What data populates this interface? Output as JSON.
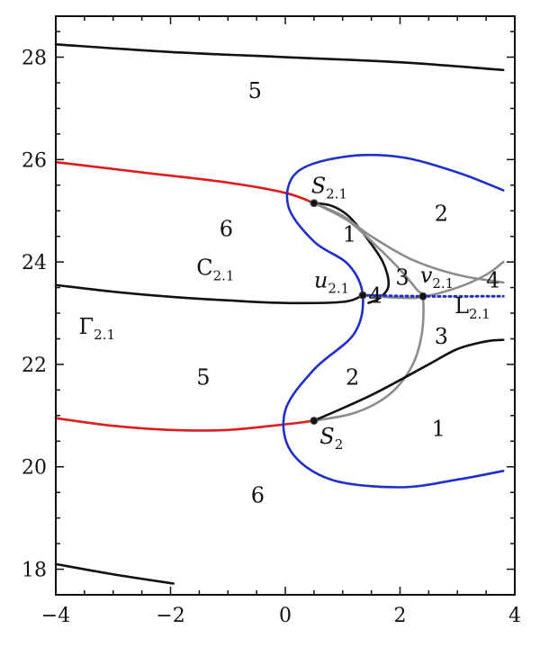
{
  "chart_data": {
    "type": "line",
    "xlim": [
      -4,
      4
    ],
    "ylim": [
      17.5,
      28.8
    ],
    "x_ticks": [
      "−4",
      "−2",
      "0",
      "2",
      "4"
    ],
    "y_ticks": [
      "18",
      "20",
      "22",
      "24",
      "26",
      "28"
    ],
    "x_tick_values": [
      -4,
      -2,
      0,
      2,
      4
    ],
    "y_tick_values": [
      18,
      20,
      22,
      24,
      26,
      28
    ],
    "colors": {
      "black": "#111111",
      "red": "#e01b1b",
      "blue": "#1f2fc8",
      "gray": "#8c8c8c",
      "dotted": "#1f2fc8"
    },
    "series": [
      {
        "color": "black",
        "style": "solid",
        "points": [
          [
            -4,
            28.25
          ],
          [
            -2,
            28.1
          ],
          [
            0,
            28.0
          ],
          [
            2,
            27.9
          ],
          [
            3.8,
            27.75
          ]
        ]
      },
      {
        "color": "black",
        "style": "solid",
        "points": [
          [
            -4,
            18.1
          ],
          [
            -3,
            17.9
          ],
          [
            -1.95,
            17.72
          ]
        ]
      },
      {
        "color": "red",
        "style": "solid",
        "points": [
          [
            -4,
            25.95
          ],
          [
            -2.5,
            25.75
          ],
          [
            -1.0,
            25.55
          ],
          [
            0,
            25.35
          ],
          [
            0.5,
            25.15
          ]
        ]
      },
      {
        "color": "red",
        "style": "solid",
        "points": [
          [
            -4,
            20.95
          ],
          [
            -3,
            20.8
          ],
          [
            -2,
            20.72
          ],
          [
            -1,
            20.72
          ],
          [
            0,
            20.83
          ],
          [
            0.5,
            20.9
          ]
        ]
      },
      {
        "color": "black",
        "style": "solid",
        "points": [
          [
            -4,
            23.55
          ],
          [
            -3,
            23.42
          ],
          [
            -2,
            23.32
          ],
          [
            -1,
            23.25
          ],
          [
            0,
            23.2
          ],
          [
            1.0,
            23.22
          ],
          [
            1.35,
            23.35
          ]
        ]
      },
      {
        "color": "black",
        "style": "solid",
        "points": [
          [
            0.5,
            25.15
          ],
          [
            0.8,
            25.1
          ],
          [
            1.1,
            24.9
          ],
          [
            1.4,
            24.5
          ],
          [
            1.7,
            24.0
          ],
          [
            1.8,
            23.55
          ],
          [
            1.65,
            23.3
          ],
          [
            1.45,
            23.2
          ]
        ]
      },
      {
        "color": "blue",
        "style": "solid",
        "points": [
          [
            3.8,
            25.4
          ],
          [
            3.0,
            25.75
          ],
          [
            2.0,
            26.05
          ],
          [
            1.0,
            26.05
          ],
          [
            0.2,
            25.75
          ],
          [
            0.05,
            25.1
          ],
          [
            0.5,
            24.4
          ],
          [
            1.1,
            23.95
          ],
          [
            1.35,
            23.35
          ],
          [
            1.2,
            22.6
          ],
          [
            0.5,
            21.9
          ],
          [
            0.0,
            21.1
          ],
          [
            0.1,
            20.3
          ],
          [
            0.8,
            19.75
          ],
          [
            2.0,
            19.6
          ],
          [
            3.0,
            19.75
          ],
          [
            3.8,
            19.92
          ]
        ]
      },
      {
        "color": "gray",
        "style": "solid",
        "points": [
          [
            0.5,
            25.15
          ],
          [
            1.1,
            24.8
          ],
          [
            1.6,
            24.3
          ],
          [
            2.0,
            23.85
          ],
          [
            2.3,
            23.45
          ],
          [
            2.4,
            23.3
          ],
          [
            2.38,
            22.6
          ],
          [
            2.2,
            21.95
          ],
          [
            1.8,
            21.4
          ],
          [
            1.2,
            21.05
          ],
          [
            0.5,
            20.9
          ]
        ]
      },
      {
        "color": "gray",
        "style": "solid",
        "points": [
          [
            1.35,
            23.35
          ],
          [
            2.0,
            23.3
          ],
          [
            2.4,
            23.32
          ],
          [
            3.0,
            23.5
          ],
          [
            3.5,
            23.75
          ],
          [
            3.8,
            24.0
          ]
        ]
      },
      {
        "color": "gray",
        "style": "solid",
        "points": [
          [
            0.5,
            25.15
          ],
          [
            1.0,
            24.9
          ],
          [
            1.5,
            24.5
          ],
          [
            2.2,
            24.05
          ],
          [
            3.0,
            23.75
          ],
          [
            3.8,
            23.6
          ]
        ]
      },
      {
        "color": "black",
        "style": "solid",
        "points": [
          [
            0.5,
            20.9
          ],
          [
            1.5,
            21.4
          ],
          [
            2.5,
            22.0
          ],
          [
            3.0,
            22.3
          ],
          [
            3.5,
            22.45
          ],
          [
            3.8,
            22.48
          ]
        ]
      },
      {
        "color": "dotted",
        "style": "dotted",
        "points": [
          [
            1.35,
            23.35
          ],
          [
            2.4,
            23.33
          ],
          [
            3.8,
            23.33
          ]
        ]
      }
    ],
    "points": [
      {
        "x": 0.5,
        "y": 25.15
      },
      {
        "x": 1.35,
        "y": 23.35
      },
      {
        "x": 2.4,
        "y": 23.33
      },
      {
        "x": 0.5,
        "y": 20.9
      }
    ],
    "annotations": [
      {
        "text": "5",
        "x": -0.65,
        "y": 27.2
      },
      {
        "text": "6",
        "x": -1.15,
        "y": 24.5
      },
      {
        "text": "C",
        "sub": "2.1",
        "x": -1.55,
        "y": 23.75
      },
      {
        "text": "Γ",
        "sub": "2.1",
        "x": -3.6,
        "y": 22.6
      },
      {
        "text": "5",
        "x": -1.55,
        "y": 21.6
      },
      {
        "text": "6",
        "x": -0.6,
        "y": 19.3
      },
      {
        "text": "S",
        "sub": "2.1",
        "x": 0.45,
        "y": 25.35
      },
      {
        "text": "1",
        "x": 1.0,
        "y": 24.4
      },
      {
        "text": "2",
        "x": 2.6,
        "y": 24.8
      },
      {
        "text": "3",
        "x": 1.92,
        "y": 23.55
      },
      {
        "text": "u",
        "sub": "2.1",
        "x": 0.5,
        "y": 23.5
      },
      {
        "text": "4",
        "x": 1.45,
        "y": 23.2
      },
      {
        "text": "v",
        "sub": "2.1",
        "x": 2.35,
        "y": 23.6
      },
      {
        "text": "4",
        "x": 3.5,
        "y": 23.5
      },
      {
        "text": "L",
        "sub": "2.1",
        "x": 2.95,
        "y": 23.0
      },
      {
        "text": "3",
        "x": 2.6,
        "y": 22.4
      },
      {
        "text": "2",
        "x": 1.05,
        "y": 21.6
      },
      {
        "text": "S",
        "sub": "2",
        "x": 0.6,
        "y": 20.45
      },
      {
        "text": "1",
        "x": 2.55,
        "y": 20.6
      }
    ]
  }
}
